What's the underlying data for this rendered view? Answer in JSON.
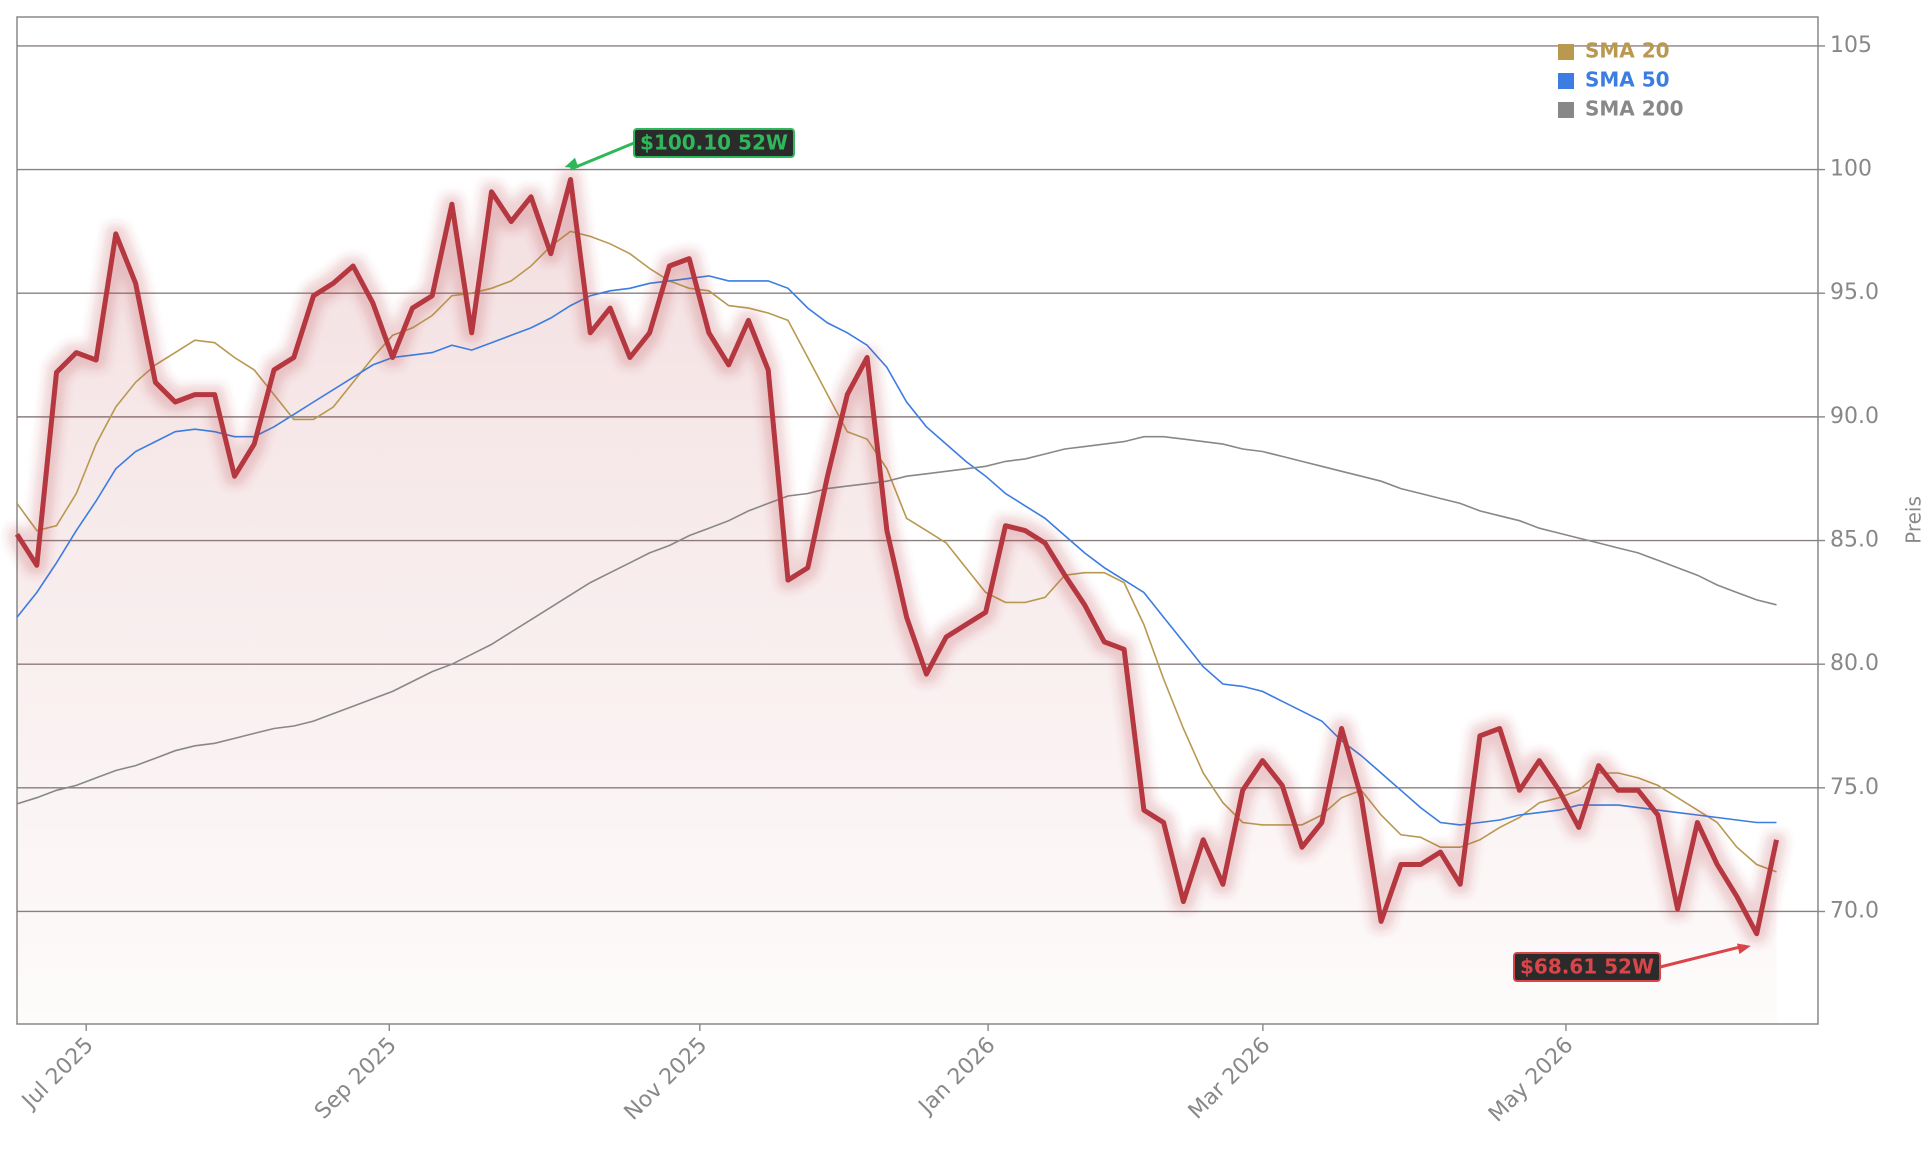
{
  "chart_data": {
    "type": "line",
    "y_label": "Preis",
    "xlim": [
      0,
      91.1
    ],
    "xticks": [
      {
        "value": 3.5,
        "label": "Jul 2025"
      },
      {
        "value": 18.83,
        "label": "Sep 2025"
      },
      {
        "value": 34.54,
        "label": "Nov 2025"
      },
      {
        "value": 49.12,
        "label": "Jan 2026"
      },
      {
        "value": 63.02,
        "label": "Mar 2026"
      },
      {
        "value": 78.35,
        "label": "May 2026"
      }
    ],
    "ylim": [
      65.45,
      106.17
    ],
    "yticks": [
      {
        "value": 70,
        "label": "70.0"
      },
      {
        "value": 75,
        "label": "75.0"
      },
      {
        "value": 80,
        "label": "80.0"
      },
      {
        "value": 85,
        "label": "85.0"
      },
      {
        "value": 90,
        "label": "90.0"
      },
      {
        "value": 95,
        "label": "95.0"
      },
      100,
      105
    ],
    "grid": true,
    "legend": "top-right",
    "color": "#b5393f",
    "values": [
      85.25,
      84,
      91.8,
      92.6,
      92.3,
      97.4,
      95.4,
      91.4,
      90.6,
      90.9,
      90.9,
      87.6,
      88.9,
      91.9,
      92.4,
      94.9,
      95.4,
      96.1,
      94.6,
      92.4,
      94.4,
      94.9,
      98.6,
      93.4,
      99.1,
      97.9,
      98.9,
      96.6,
      99.6,
      93.4,
      94.4,
      92.4,
      93.4,
      96.1,
      96.4,
      93.4,
      92.1,
      93.9,
      91.9,
      83.4,
      83.9,
      87.6,
      90.9,
      92.4,
      85.4,
      81.9,
      79.6,
      81.1,
      81.6,
      82.1,
      85.6,
      85.4,
      84.9,
      83.6,
      82.4,
      80.9,
      80.6,
      74.1,
      73.6,
      70.4,
      72.9,
      71.1,
      74.9,
      76.1,
      75.1,
      72.6,
      73.6,
      77.4,
      74.6,
      69.6,
      71.9,
      71.9,
      72.4,
      71.1,
      77.1,
      77.4,
      74.9,
      76.1,
      74.9,
      73.4,
      75.9,
      74.9,
      74.9,
      73.9,
      70.1,
      73.6,
      71.9,
      70.6,
      69.1,
      72.9
    ],
    "series": [
      {
        "name": "SMA 20",
        "color": "#b8994f",
        "values": [
          86.5,
          85.4,
          85.6,
          86.9,
          88.9,
          90.4,
          91.4,
          92.1,
          92.6,
          93.1,
          93,
          92.4,
          91.9,
          90.9,
          89.9,
          89.9,
          90.4,
          91.4,
          92.4,
          93.3,
          93.6,
          94.1,
          94.9,
          95,
          95.2,
          95.5,
          96.1,
          96.9,
          97.5,
          97.3,
          97,
          96.6,
          96,
          95.5,
          95.2,
          95.1,
          94.5,
          94.4,
          94.2,
          93.9,
          92.4,
          90.9,
          89.4,
          89.1,
          87.9,
          85.9,
          85.4,
          84.9,
          83.9,
          82.9,
          82.5,
          82.5,
          82.7,
          83.6,
          83.7,
          83.7,
          83.3,
          81.6,
          79.4,
          77.4,
          75.6,
          74.4,
          73.6,
          73.5,
          73.5,
          73.5,
          73.9,
          74.6,
          74.9,
          73.9,
          73.1,
          73,
          72.6,
          72.6,
          72.9,
          73.4,
          73.8,
          74.4,
          74.6,
          74.9,
          75.6,
          75.6,
          75.4,
          75.1,
          74.6,
          74.1,
          73.6,
          72.6,
          71.9,
          71.6
        ]
      },
      {
        "name": "SMA 50",
        "color": "#3b7de0",
        "values": [
          81.9,
          82.9,
          84.1,
          85.4,
          86.6,
          87.9,
          88.6,
          89,
          89.4,
          89.5,
          89.4,
          89.2,
          89.2,
          89.6,
          90.1,
          90.6,
          91.1,
          91.6,
          92.1,
          92.4,
          92.5,
          92.6,
          92.9,
          92.7,
          93,
          93.3,
          93.6,
          94,
          94.5,
          94.9,
          95.1,
          95.2,
          95.4,
          95.5,
          95.6,
          95.7,
          95.5,
          95.5,
          95.5,
          95.2,
          94.4,
          93.8,
          93.4,
          92.9,
          92,
          90.6,
          89.6,
          88.9,
          88.2,
          87.6,
          86.9,
          86.4,
          85.9,
          85.2,
          84.5,
          83.9,
          83.4,
          82.9,
          81.9,
          80.9,
          79.9,
          79.2,
          79.1,
          78.9,
          78.5,
          78.1,
          77.7,
          76.9,
          76.3,
          75.6,
          74.9,
          74.2,
          73.6,
          73.5,
          73.6,
          73.7,
          73.9,
          74,
          74.1,
          74.3,
          74.3,
          74.3,
          74.2,
          74.1,
          74,
          73.9,
          73.8,
          73.7,
          73.6,
          73.6
        ]
      },
      {
        "name": "SMA 200",
        "color": "#888888",
        "values": [
          74.35,
          74.6,
          74.9,
          75.1,
          75.4,
          75.7,
          75.9,
          76.2,
          76.5,
          76.7,
          76.8,
          77,
          77.2,
          77.4,
          77.5,
          77.7,
          78,
          78.3,
          78.6,
          78.9,
          79.3,
          79.7,
          80,
          80.4,
          80.8,
          81.3,
          81.8,
          82.3,
          82.8,
          83.3,
          83.7,
          84.1,
          84.5,
          84.8,
          85.2,
          85.5,
          85.8,
          86.2,
          86.5,
          86.8,
          86.9,
          87.1,
          87.2,
          87.3,
          87.4,
          87.6,
          87.7,
          87.8,
          87.9,
          88,
          88.2,
          88.3,
          88.5,
          88.7,
          88.8,
          88.9,
          89,
          89.2,
          89.2,
          89.1,
          89,
          88.9,
          88.7,
          88.6,
          88.4,
          88.2,
          88,
          87.8,
          87.6,
          87.4,
          87.1,
          86.9,
          86.7,
          86.5,
          86.2,
          86,
          85.8,
          85.5,
          85.3,
          85.1,
          84.9,
          84.7,
          84.5,
          84.2,
          83.9,
          83.6,
          83.2,
          82.9,
          82.6,
          82.4
        ]
      }
    ],
    "annotations": [
      {
        "text": "$100.10 52W",
        "x": 27.7,
        "y": 100.1,
        "color": "#2fb85a"
      },
      {
        "text": "$68.61 52W",
        "x": 87.7,
        "y": 68.61,
        "color": "#d9454a"
      }
    ]
  }
}
